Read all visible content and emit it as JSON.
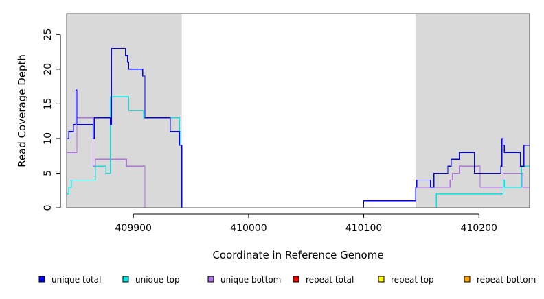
{
  "chart_data": {
    "type": "line",
    "title": "",
    "xlabel": "Coordinate in Reference Genome",
    "ylabel": "Read Coverage Depth",
    "xlim": [
      409842,
      410244
    ],
    "ylim": [
      0,
      28
    ],
    "x_ticks": [
      409900,
      410000,
      410100,
      410200
    ],
    "x_tick_labels": [
      "409900",
      "410000",
      "410100",
      "410200"
    ],
    "y_ticks": [
      0,
      5,
      10,
      15,
      20,
      25
    ],
    "y_tick_labels": [
      "0",
      "5",
      "10",
      "15",
      "20",
      "25"
    ],
    "shaded_regions": [
      {
        "x": [
          409842,
          409942
        ],
        "color": "#d9d9d9"
      },
      {
        "x": [
          410145,
          410244
        ],
        "color": "#d9d9d9"
      }
    ],
    "grid": false,
    "legend_position": "bottom",
    "series": [
      {
        "name": "unique total",
        "color": "#0000ff",
        "x": [
          409842,
          409844,
          409846,
          409848,
          409850,
          409851,
          409852,
          409865,
          409866,
          409867,
          409880,
          409881,
          409893,
          409894,
          409895,
          409896,
          409907,
          409908,
          409909,
          409910,
          409932,
          409933,
          409940,
          409941,
          409942,
          410100,
          410145,
          410146,
          410148,
          410158,
          410161,
          410173,
          410174,
          410176,
          410177,
          410183,
          410184,
          410196,
          410197,
          410219,
          410220,
          410221,
          410222,
          410223,
          410236,
          410237,
          410239,
          410240,
          410244
        ],
        "y": [
          10,
          11,
          11,
          12,
          17,
          12,
          12,
          10,
          13,
          13,
          12,
          23,
          22,
          22,
          21,
          20,
          20,
          19,
          19,
          13,
          11,
          11,
          9,
          9,
          0,
          1,
          3,
          4,
          4,
          3,
          5,
          6,
          6,
          7,
          7,
          8,
          8,
          5,
          5,
          6,
          10,
          9,
          8,
          8,
          6,
          6,
          9,
          9,
          9
        ]
      },
      {
        "name": "unique top",
        "color": "#00e5e5",
        "x": [
          409842,
          409843,
          409844,
          409846,
          409866,
          409867,
          409875,
          409876,
          409880,
          409881,
          409894,
          409896,
          409905,
          409909,
          409910,
          409940,
          409941,
          409942,
          410162,
          410163,
          410212,
          410221,
          410222,
          410223,
          410236,
          410237,
          410244
        ],
        "y": [
          2,
          2,
          3,
          4,
          4,
          6,
          6,
          5,
          16,
          16,
          16,
          14,
          14,
          13,
          13,
          11,
          9,
          0,
          0,
          2,
          2,
          4,
          3,
          3,
          3,
          6,
          6
        ]
      },
      {
        "name": "unique bottom",
        "color": "#b070e8",
        "x": [
          409842,
          409849,
          409851,
          409865,
          409867,
          409890,
          409894,
          409906,
          409910,
          409942,
          410100,
          410145,
          410158,
          410168,
          410175,
          410177,
          410183,
          410196,
          410201,
          410220,
          410221,
          410222,
          410238,
          410244
        ],
        "y": [
          8,
          8,
          13,
          6,
          7,
          7,
          6,
          6,
          0,
          0,
          1,
          3,
          3,
          3,
          4,
          5,
          6,
          6,
          3,
          3,
          5,
          5,
          3,
          3
        ]
      },
      {
        "name": "repeat total",
        "color": "#ff0000",
        "x": [
          409842,
          410244
        ],
        "y": [
          0,
          0
        ]
      },
      {
        "name": "repeat top",
        "color": "#ffff00",
        "x": [
          409842,
          410244
        ],
        "y": [
          0,
          0
        ]
      },
      {
        "name": "repeat bottom",
        "color": "#ffa500",
        "x": [
          409842,
          410244
        ],
        "y": [
          0,
          0
        ]
      }
    ]
  }
}
